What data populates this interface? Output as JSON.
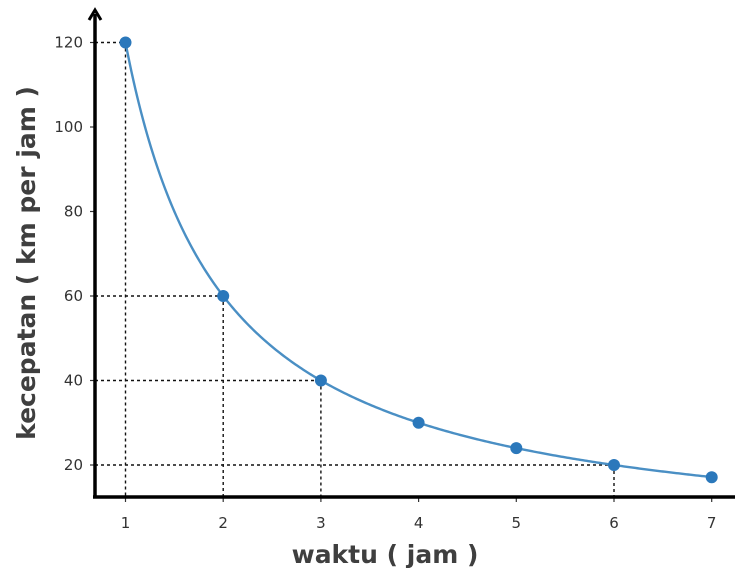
{
  "chart_data": {
    "type": "line",
    "xlabel": "waktu ( jam )",
    "ylabel": "kecepatan ( km per jam )",
    "xlim": [
      0.7,
      7.25
    ],
    "ylim": [
      12,
      125
    ],
    "x_ticks": [
      "1",
      "2",
      "3",
      "4",
      "5",
      "6",
      "7"
    ],
    "y_ticks": [
      "20",
      "40",
      "60",
      "80",
      "100",
      "120"
    ],
    "x": [
      1,
      2,
      3,
      4,
      5,
      6,
      7
    ],
    "series": [
      {
        "values": [
          120,
          60,
          40,
          30,
          24,
          20,
          17.1
        ],
        "color": "#4a8fc4",
        "marker_color": "#2b78bb"
      }
    ],
    "guide_points": [
      {
        "x": 1,
        "y": 120
      },
      {
        "x": 2,
        "y": 60
      },
      {
        "x": 3,
        "y": 40
      },
      {
        "x": 6,
        "y": 20
      }
    ],
    "grid": false,
    "legend": "none"
  }
}
